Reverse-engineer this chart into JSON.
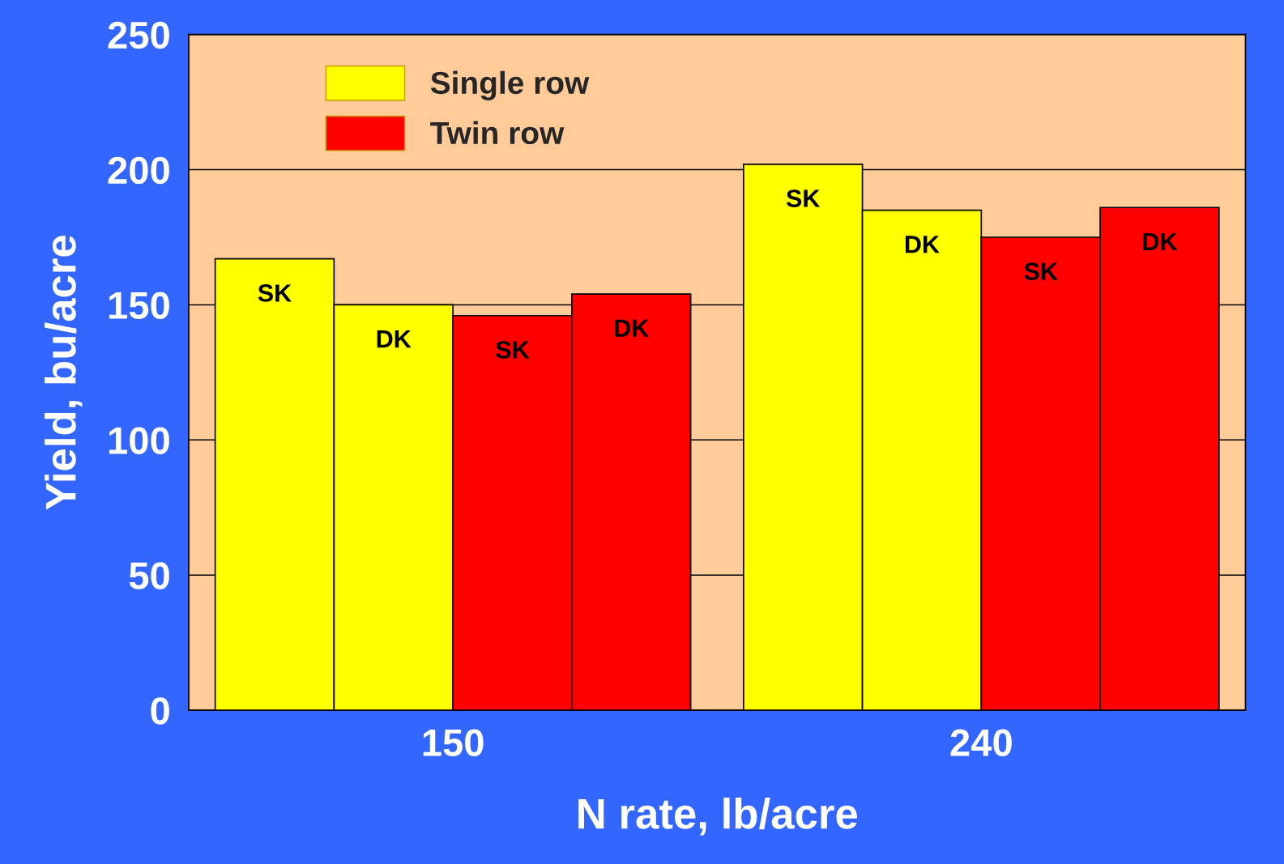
{
  "chart_data": {
    "type": "bar",
    "xlabel": "N rate, lb/acre",
    "ylabel": "Yield, bu/acre",
    "categories": [
      "150",
      "240"
    ],
    "series": [
      {
        "name": "Single row",
        "color": "#ffff00",
        "values": [
          167,
          202
        ],
        "value_labels": [
          "SK",
          "SK"
        ]
      },
      {
        "color": "#ffff00",
        "values": [
          150,
          185
        ],
        "value_labels": [
          "DK",
          "DK"
        ]
      },
      {
        "name": "Twin row",
        "color": "#ff0000",
        "values": [
          146,
          175
        ],
        "value_labels": [
          "SK",
          "SK"
        ]
      },
      {
        "color": "#ff0000",
        "values": [
          154,
          186
        ],
        "value_labels": [
          "DK",
          "DK"
        ]
      }
    ],
    "ylim": [
      0,
      250
    ],
    "yticks": [
      0,
      50,
      100,
      150,
      200,
      250
    ],
    "grid": "y",
    "legend": "top left"
  }
}
